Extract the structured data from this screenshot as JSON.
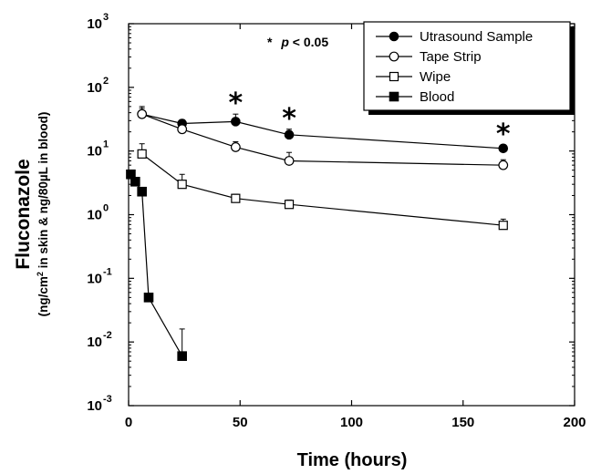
{
  "chart_data": {
    "type": "line",
    "xlabel": "Time (hours)",
    "ylabel": "Fluconazole",
    "ylabel_sub_parts": [
      "(ng/cm",
      "2",
      " in skin &  ng/80",
      "µ",
      "L in blood)"
    ],
    "xlim": [
      0,
      200
    ],
    "ylim": [
      0.001,
      1000
    ],
    "y_scale": "log",
    "x_ticks": [
      0,
      50,
      100,
      150,
      200
    ],
    "y_ticks": [
      {
        "value": 0.001,
        "base": "10",
        "exp": "-3"
      },
      {
        "value": 0.01,
        "base": "10",
        "exp": "-2"
      },
      {
        "value": 0.1,
        "base": "10",
        "exp": "-1"
      },
      {
        "value": 1,
        "base": "10",
        "exp": "0"
      },
      {
        "value": 10,
        "base": "10",
        "exp": "1"
      },
      {
        "value": 100,
        "base": "10",
        "exp": "2"
      },
      {
        "value": 1000,
        "base": "10",
        "exp": "3"
      }
    ],
    "grid": false,
    "legend_position": "top-right",
    "annotation": {
      "star": "*",
      "p": "p",
      "rest": " < 0.05"
    },
    "significance_markers": [
      {
        "x": 48,
        "symbol": "*"
      },
      {
        "x": 72,
        "symbol": "*"
      },
      {
        "x": 168,
        "symbol": "*"
      }
    ],
    "series": [
      {
        "name": "Utrasound Sample",
        "marker": "filled-circle",
        "x": [
          6,
          24,
          48,
          72,
          168
        ],
        "y": [
          38,
          27,
          29,
          18,
          11
        ],
        "err_upper": [
          50,
          31,
          38,
          22,
          12.5
        ]
      },
      {
        "name": "Tape Strip",
        "marker": "open-circle",
        "x": [
          6,
          24,
          48,
          72,
          168
        ],
        "y": [
          38,
          22,
          11.5,
          7,
          6
        ],
        "err_upper": [
          47,
          25,
          14,
          9.5,
          7.3
        ]
      },
      {
        "name": "Wipe",
        "marker": "open-square",
        "x": [
          6,
          24,
          48,
          72,
          168
        ],
        "y": [
          9,
          3,
          1.8,
          1.45,
          0.68
        ],
        "err_upper": [
          13,
          4.3,
          2.1,
          1.7,
          0.85
        ]
      },
      {
        "name": "Blood",
        "marker": "filled-square",
        "x": [
          1,
          3,
          6,
          9,
          24
        ],
        "y": [
          4.3,
          3.3,
          2.3,
          0.05,
          0.006
        ],
        "err_upper": [
          null,
          null,
          null,
          null,
          0.016
        ]
      }
    ]
  }
}
